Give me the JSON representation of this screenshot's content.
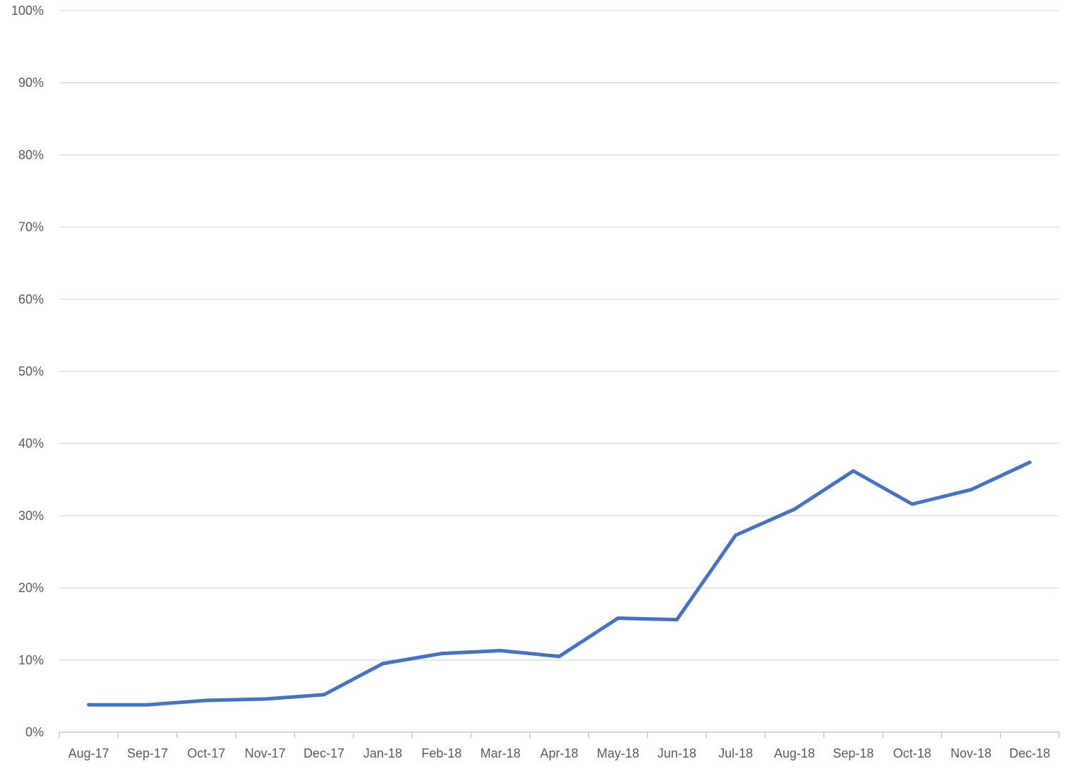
{
  "chart_data": {
    "type": "line",
    "title": "",
    "xlabel": "",
    "ylabel": "",
    "categories": [
      "Aug-17",
      "Sep-17",
      "Oct-17",
      "Nov-17",
      "Dec-17",
      "Jan-18",
      "Feb-18",
      "Mar-18",
      "Apr-18",
      "May-18",
      "Jun-18",
      "Jul-18",
      "Aug-18",
      "Sep-18",
      "Oct-18",
      "Nov-18",
      "Dec-18"
    ],
    "series": [
      {
        "values": [
          3.8,
          3.8,
          4.4,
          4.6,
          5.2,
          9.5,
          10.9,
          11.3,
          10.5,
          15.8,
          15.6,
          27.3,
          30.9,
          36.2,
          31.6,
          33.6,
          37.4
        ],
        "color": "#4472c4"
      }
    ],
    "ylim": [
      0,
      100
    ],
    "yticks": [
      0,
      10,
      20,
      30,
      40,
      50,
      60,
      70,
      80,
      90,
      100
    ],
    "ytick_labels": [
      "0%",
      "10%",
      "20%",
      "30%",
      "40%",
      "50%",
      "60%",
      "70%",
      "80%",
      "90%",
      "100%"
    ],
    "grid": true,
    "legend": "none"
  }
}
